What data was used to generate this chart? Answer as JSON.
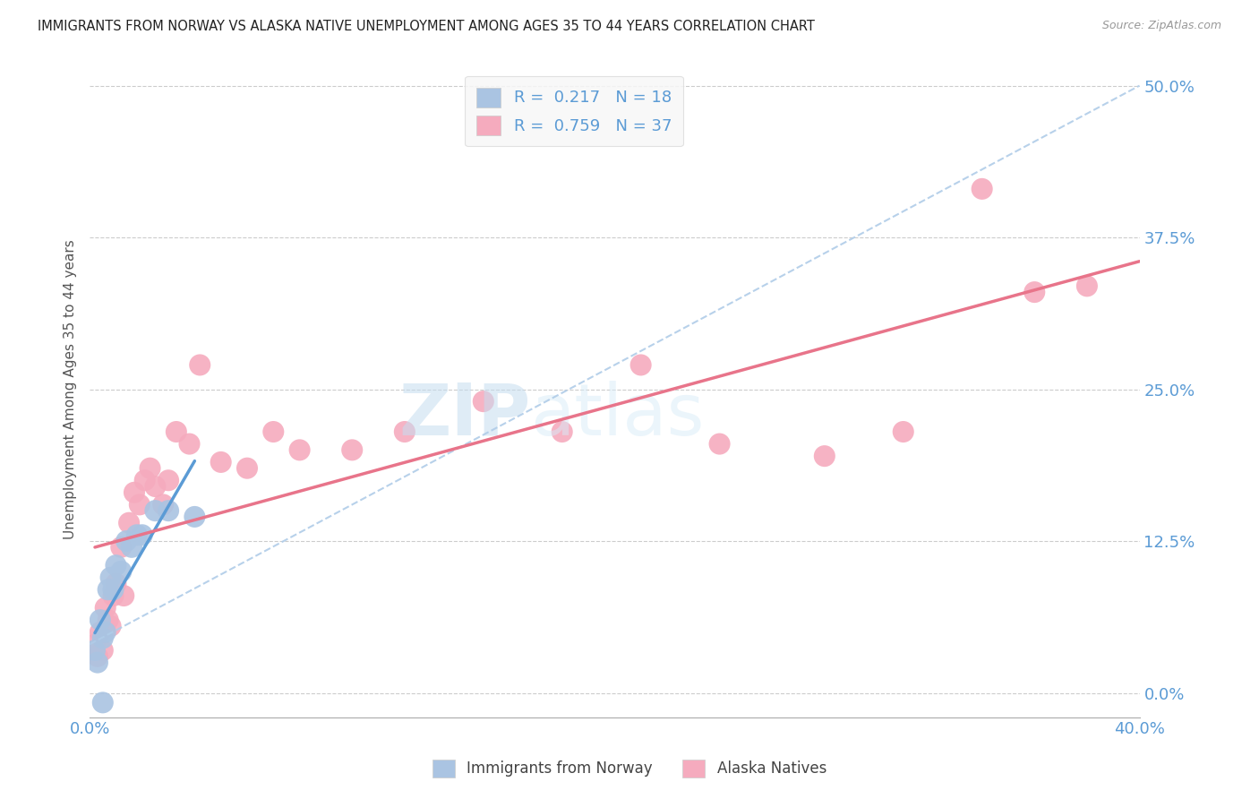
{
  "title": "IMMIGRANTS FROM NORWAY VS ALASKA NATIVE UNEMPLOYMENT AMONG AGES 35 TO 44 YEARS CORRELATION CHART",
  "source": "Source: ZipAtlas.com",
  "ylabel": "Unemployment Among Ages 35 to 44 years",
  "xlim": [
    0.0,
    0.4
  ],
  "ylim": [
    -0.02,
    0.52
  ],
  "norway_R": 0.217,
  "norway_N": 18,
  "alaska_R": 0.759,
  "alaska_N": 37,
  "norway_color": "#aac4e2",
  "alaska_color": "#f5abbe",
  "norway_line_color": "#5b9bd5",
  "alaska_line_color": "#e8748a",
  "dashed_line_color": "#b0cce8",
  "background_color": "#ffffff",
  "norway_scatter_x": [
    0.002,
    0.003,
    0.004,
    0.005,
    0.006,
    0.007,
    0.008,
    0.009,
    0.01,
    0.012,
    0.014,
    0.016,
    0.018,
    0.02,
    0.025,
    0.03,
    0.04,
    0.005
  ],
  "norway_scatter_y": [
    0.035,
    0.025,
    0.06,
    0.045,
    0.05,
    0.085,
    0.095,
    0.085,
    0.105,
    0.1,
    0.125,
    0.12,
    0.13,
    0.13,
    0.15,
    0.15,
    0.145,
    -0.008
  ],
  "alaska_scatter_x": [
    0.002,
    0.003,
    0.004,
    0.005,
    0.006,
    0.007,
    0.008,
    0.009,
    0.01,
    0.012,
    0.013,
    0.015,
    0.017,
    0.019,
    0.021,
    0.023,
    0.025,
    0.028,
    0.03,
    0.033,
    0.038,
    0.042,
    0.05,
    0.06,
    0.07,
    0.08,
    0.1,
    0.12,
    0.15,
    0.18,
    0.21,
    0.24,
    0.28,
    0.31,
    0.34,
    0.36,
    0.38
  ],
  "alaska_scatter_y": [
    0.04,
    0.03,
    0.05,
    0.035,
    0.07,
    0.06,
    0.055,
    0.08,
    0.09,
    0.12,
    0.08,
    0.14,
    0.165,
    0.155,
    0.175,
    0.185,
    0.17,
    0.155,
    0.175,
    0.215,
    0.205,
    0.27,
    0.19,
    0.185,
    0.215,
    0.2,
    0.2,
    0.215,
    0.24,
    0.215,
    0.27,
    0.205,
    0.195,
    0.215,
    0.415,
    0.33,
    0.335
  ]
}
